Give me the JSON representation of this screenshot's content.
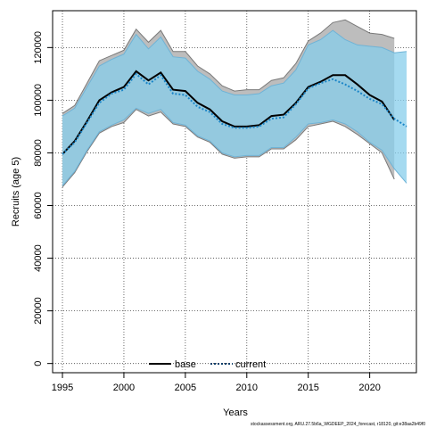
{
  "chart_data": {
    "type": "line",
    "xlabel": "Years",
    "ylabel": "Recruits (age 5)",
    "footer": "stockassessment.org, ARU.27.5b6a_WGDEEP_2024_forecast, r18120, git:e38aa2b49f0",
    "xlim": [
      1994.2,
      2023.8
    ],
    "ylim": [
      -3500,
      134000
    ],
    "x_ticks": [
      1995,
      2000,
      2005,
      2010,
      2015,
      2020
    ],
    "y_ticks": [
      0,
      20000,
      40000,
      60000,
      80000,
      100000,
      120000
    ],
    "grid": true,
    "legend_position": "bottom-center",
    "legend": [
      {
        "label": "base",
        "style": "solid"
      },
      {
        "label": "current",
        "style": "dotted"
      }
    ],
    "colors": {
      "base_band": "#bdbdbd",
      "current_band": "#87ceeb",
      "base_line": "#000000",
      "current_line": "#1c86c8"
    },
    "series": [
      {
        "name": "base",
        "x": [
          1995,
          1996,
          1997,
          1998,
          1999,
          2000,
          2001,
          2002,
          2003,
          2004,
          2005,
          2006,
          2007,
          2008,
          2009,
          2010,
          2011,
          2012,
          2013,
          2014,
          2015,
          2016,
          2017,
          2018,
          2019,
          2020,
          2021,
          2022
        ],
        "y": [
          79500,
          84500,
          92000,
          100000,
          103000,
          105000,
          111000,
          107500,
          110500,
          104000,
          103500,
          99000,
          96500,
          92000,
          90000,
          90000,
          90500,
          94000,
          94500,
          99000,
          105000,
          107000,
          109500,
          109500,
          106000,
          102000,
          99500,
          92500
        ],
        "lower": [
          67000,
          72500,
          80500,
          87500,
          90000,
          91500,
          96500,
          94000,
          95500,
          91000,
          90000,
          86000,
          84000,
          79500,
          78000,
          78500,
          78500,
          81500,
          81500,
          85000,
          90000,
          91000,
          92000,
          90000,
          87000,
          83500,
          80000,
          70000
        ],
        "upper": [
          95000,
          98000,
          106500,
          115000,
          117000,
          119000,
          127000,
          122000,
          126500,
          118500,
          118500,
          113000,
          110000,
          105500,
          103500,
          104000,
          104000,
          107500,
          108500,
          114000,
          122500,
          125500,
          129500,
          130500,
          128000,
          125500,
          125000,
          123500
        ]
      },
      {
        "name": "current",
        "x": [
          1995,
          1996,
          1997,
          1998,
          1999,
          2000,
          2001,
          2002,
          2003,
          2004,
          2005,
          2006,
          2007,
          2008,
          2009,
          2010,
          2011,
          2012,
          2013,
          2014,
          2015,
          2016,
          2017,
          2018,
          2019,
          2020,
          2021,
          2022,
          2023
        ],
        "y": [
          79500,
          84000,
          91500,
          99000,
          102500,
          104000,
          110000,
          106000,
          109500,
          102500,
          102000,
          97500,
          95500,
          91000,
          89500,
          89500,
          90000,
          93000,
          93500,
          98500,
          104500,
          106500,
          108000,
          106000,
          103500,
          100500,
          98500,
          93000,
          90000
        ],
        "lower": [
          67500,
          73000,
          81000,
          88000,
          90500,
          92500,
          97000,
          95000,
          96500,
          91500,
          90500,
          86500,
          84500,
          80000,
          78500,
          79000,
          79000,
          82000,
          82000,
          86000,
          91000,
          91500,
          92500,
          91000,
          88000,
          84000,
          81000,
          74000,
          68500
        ],
        "upper": [
          94000,
          97000,
          105000,
          113000,
          115500,
          117500,
          125000,
          119500,
          124000,
          116500,
          116000,
          111000,
          108000,
          103500,
          102000,
          102000,
          102500,
          105500,
          106500,
          111500,
          121000,
          123000,
          126500,
          123000,
          121000,
          120500,
          120000,
          118000,
          118500
        ]
      }
    ]
  }
}
